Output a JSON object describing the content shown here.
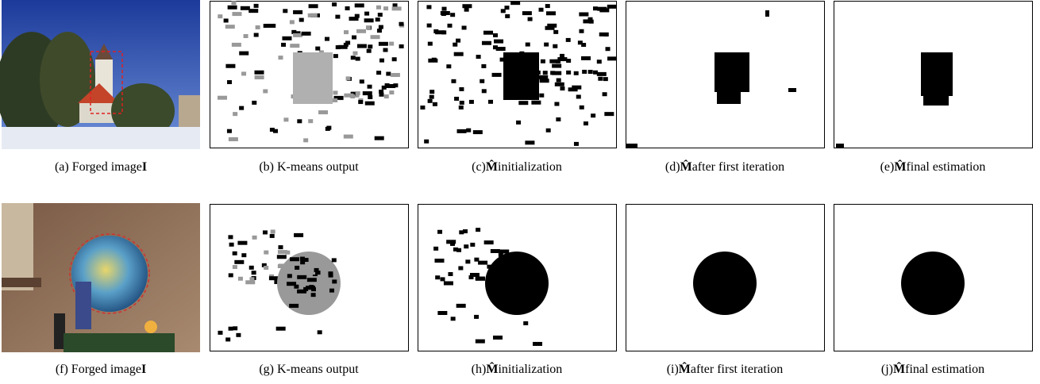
{
  "figure": {
    "rows": [
      {
        "captions": [
          [
            "(a) Forged image",
            "I"
          ],
          [
            "(b) K-means output"
          ],
          [
            "(c)",
            "M̂",
            "initialization"
          ],
          [
            "(d)",
            "M̂",
            "after first iteration"
          ],
          [
            "(e)",
            "M̂",
            "final estimation"
          ]
        ]
      },
      {
        "captions": [
          [
            "(f) Forged image",
            "I"
          ],
          [
            "(g) K-means output"
          ],
          [
            "(h)",
            "M̂",
            "initialization"
          ],
          [
            "(i)",
            "M̂",
            "after first iteration"
          ],
          [
            "(j)",
            "M̂",
            "final estimation"
          ]
        ]
      }
    ]
  }
}
